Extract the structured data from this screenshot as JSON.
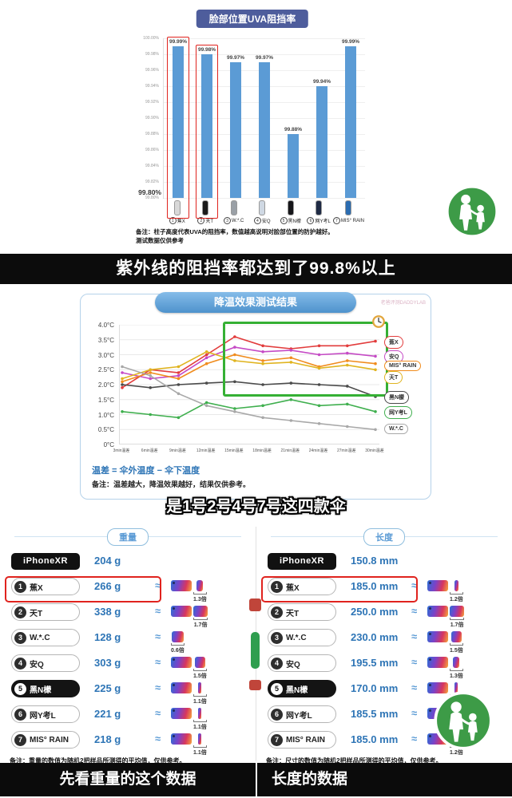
{
  "captions": {
    "uv_banner": "紫外线的阻挡率都达到了99.8%以上",
    "best_four": "是1号2号4号7号这四款伞",
    "weight_banner": "先看重量的这个数据",
    "length_banner": "长度的数据"
  },
  "watermark": "老爸评测DADDYLAB",
  "colors": {
    "bar_blue": "#5b9bd5",
    "banner_indigo": "#4e5d9c",
    "banner_light_blue": "#4e92cc",
    "value_blue": "#2e75b6",
    "highlight_red": "#e0231e",
    "highlight_green": "#35b034",
    "logo_green": "#3d9b47",
    "caption_black": "#0c0c0c"
  },
  "chart_data": [
    {
      "id": "uva_bar",
      "type": "bar",
      "title": "脸部位置UVA阻挡率",
      "ylim": [
        99.8,
        100.0
      ],
      "y_ticks": [
        "100.00%",
        "99.98%",
        "99.96%",
        "99.94%",
        "99.92%",
        "99.90%",
        "99.88%",
        "99.86%",
        "99.84%",
        "99.82%",
        "99.80%"
      ],
      "y_axis_callout": "99.80%",
      "categories": [
        "蕉X",
        "天T",
        "W.*.C",
        "安Q",
        "黑N檬",
        "网Y考L",
        "MIS° RAIN"
      ],
      "numbers": [
        1,
        2,
        3,
        4,
        5,
        6,
        7
      ],
      "values": [
        99.99,
        99.98,
        99.97,
        99.97,
        99.88,
        99.94,
        99.99
      ],
      "value_labels": [
        "99.99%",
        "99.98%",
        "99.97%",
        "99.97%",
        "99.88%",
        "99.94%",
        "99.99%"
      ],
      "highlighted": [
        0,
        1
      ],
      "bar_color": "#5b9bd5",
      "thumb_colors": [
        "#d8d8d8",
        "#1a1a1a",
        "#9aa0a6",
        "#cfd8e3",
        "#16161a",
        "#1f2a44",
        "#2b6cb0"
      ],
      "note_line1": "备注：柱子高度代表UVA的阻挡率，数值越高说明对脸部位置的防护越好。",
      "note_line2": "测试数据仅供参考",
      "grid": true,
      "legend_position": "none"
    },
    {
      "id": "cooling_line",
      "type": "line",
      "title": "降温效果测试结果",
      "ylim": [
        0,
        4
      ],
      "y_ticks": [
        "4.0°C",
        "3.5°C",
        "3.0°C",
        "2.5°C",
        "2.0°C",
        "1.5°C",
        "1.0°C",
        "0.5°C",
        "0°C"
      ],
      "x": [
        "3min温差",
        "6min温差",
        "9min温差",
        "12min温差",
        "15min温差",
        "18min温差",
        "21min温差",
        "24min温差",
        "27min温差",
        "30min温差"
      ],
      "series": [
        {
          "name": "蕉X",
          "color": "#e23c3c",
          "values": [
            1.9,
            2.5,
            2.4,
            3.0,
            3.6,
            3.3,
            3.2,
            3.3,
            3.3,
            3.45
          ]
        },
        {
          "name": "安Q",
          "color": "#c54ac5",
          "values": [
            2.4,
            2.2,
            2.3,
            2.9,
            3.25,
            3.1,
            3.15,
            3.0,
            3.05,
            2.95
          ]
        },
        {
          "name": "MIS° RAIN",
          "color": "#f08c1e",
          "values": [
            2.1,
            2.4,
            2.2,
            2.7,
            3.0,
            2.8,
            2.9,
            2.6,
            2.8,
            2.7
          ]
        },
        {
          "name": "天T",
          "color": "#e0b420",
          "values": [
            2.2,
            2.5,
            2.6,
            3.1,
            2.8,
            2.7,
            2.75,
            2.55,
            2.65,
            2.5
          ]
        },
        {
          "name": "黑N檬",
          "color": "#4a4a4a",
          "values": [
            2.0,
            1.9,
            2.0,
            2.05,
            2.1,
            2.0,
            2.05,
            2.0,
            1.95,
            1.6
          ]
        },
        {
          "name": "网Y考L",
          "color": "#3faf4e",
          "values": [
            1.1,
            1.0,
            0.9,
            1.4,
            1.2,
            1.3,
            1.5,
            1.3,
            1.35,
            1.1
          ]
        },
        {
          "name": "W.*.C",
          "color": "#a8a8a8",
          "values": [
            2.6,
            2.3,
            1.7,
            1.3,
            1.1,
            0.9,
            0.8,
            0.7,
            0.6,
            0.5
          ]
        }
      ],
      "highlight_box": {
        "x_from": "12min温差",
        "x_to": "30min温差",
        "y_from": 1.75,
        "y_to": 4.0,
        "color": "#35b034"
      },
      "formula": "温差 = 伞外温度 − 伞下温度",
      "note": "备注：温差越大，降温效果越好，结果仅供参考。",
      "grid": true,
      "legend_position": "right"
    },
    {
      "id": "weight_table",
      "type": "table",
      "header": "重量",
      "reference": {
        "label": "iPhoneXR",
        "value": "204 g"
      },
      "approx_symbol": "≈",
      "rows": [
        {
          "num": 1,
          "name": "蕉X",
          "value": "266 g",
          "multiplier": 1.3,
          "multiplier_label": "1.3倍",
          "highlight": true
        },
        {
          "num": 2,
          "name": "天T",
          "value": "338 g",
          "multiplier": 1.7,
          "multiplier_label": "1.7倍"
        },
        {
          "num": 3,
          "name": "W.*.C",
          "value": "128 g",
          "multiplier": 0.6,
          "multiplier_label": "0.6倍"
        },
        {
          "num": 4,
          "name": "安Q",
          "value": "303 g",
          "multiplier": 1.5,
          "multiplier_label": "1.5倍"
        },
        {
          "num": 5,
          "name": "黑N檬",
          "value": "225 g",
          "multiplier": 1.1,
          "multiplier_label": "1.1倍",
          "dark": true
        },
        {
          "num": 6,
          "name": "网Y考L",
          "value": "221 g",
          "multiplier": 1.1,
          "multiplier_label": "1.1倍"
        },
        {
          "num": 7,
          "name": "MIS° RAIN",
          "value": "218 g",
          "multiplier": 1.1,
          "multiplier_label": "1.1倍"
        }
      ],
      "note": "备注：重量的数值为随机2把样品所测得的平均值，仅供参考。"
    },
    {
      "id": "length_table",
      "type": "table",
      "header": "长度",
      "reference": {
        "label": "iPhoneXR",
        "value": "150.8 mm"
      },
      "approx_symbol": "≈",
      "rows": [
        {
          "num": 1,
          "name": "蕉X",
          "value": "185.0 mm",
          "multiplier": 1.2,
          "multiplier_label": "1.2倍",
          "highlight": true
        },
        {
          "num": 2,
          "name": "天T",
          "value": "250.0 mm",
          "multiplier": 1.7,
          "multiplier_label": "1.7倍"
        },
        {
          "num": 3,
          "name": "W.*.C",
          "value": "230.0 mm",
          "multiplier": 1.5,
          "multiplier_label": "1.5倍"
        },
        {
          "num": 4,
          "name": "安Q",
          "value": "195.5 mm",
          "multiplier": 1.3,
          "multiplier_label": "1.3倍"
        },
        {
          "num": 5,
          "name": "黑N檬",
          "value": "170.0 mm",
          "multiplier": 1.1,
          "multiplier_label": "1.1倍",
          "dark": true
        },
        {
          "num": 6,
          "name": "网Y考L",
          "value": "185.5 mm",
          "multiplier": 1.2,
          "multiplier_label": "1.2倍"
        },
        {
          "num": 7,
          "name": "MIS° RAIN",
          "value": "185.0 mm",
          "multiplier": 1.2,
          "multiplier_label": "1.2倍"
        }
      ],
      "note": "备注：尺寸的数值为随机2把样品所测得的平均值，仅供参考。"
    }
  ]
}
